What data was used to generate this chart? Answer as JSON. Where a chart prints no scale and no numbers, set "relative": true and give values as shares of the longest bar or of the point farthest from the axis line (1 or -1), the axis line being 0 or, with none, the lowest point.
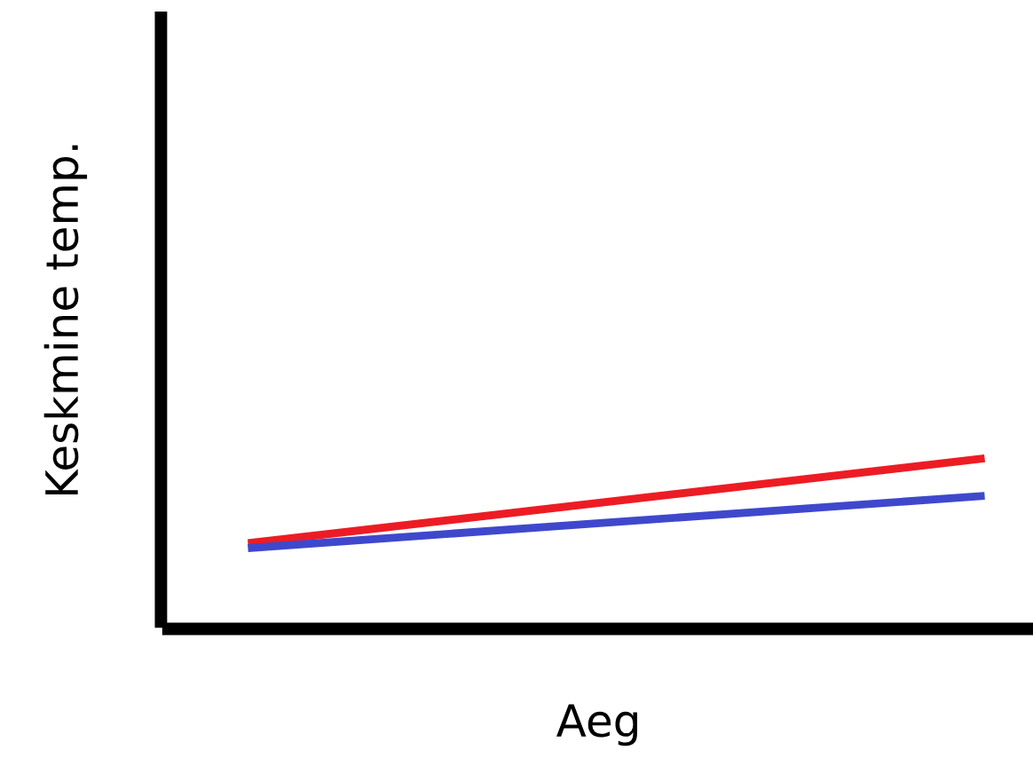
{
  "chart_data": {
    "type": "line",
    "relative": true,
    "xlabel": "Aeg",
    "ylabel": "Keskmine temp.",
    "categories": [
      null,
      null
    ],
    "series": [
      {
        "color": "#ed1c24",
        "values": [
          0.48,
          1
        ]
      },
      {
        "color": "#3f48cc",
        "values": [
          0.45,
          0.77
        ]
      }
    ],
    "grid": false,
    "legend": false,
    "tick_labels": false
  }
}
